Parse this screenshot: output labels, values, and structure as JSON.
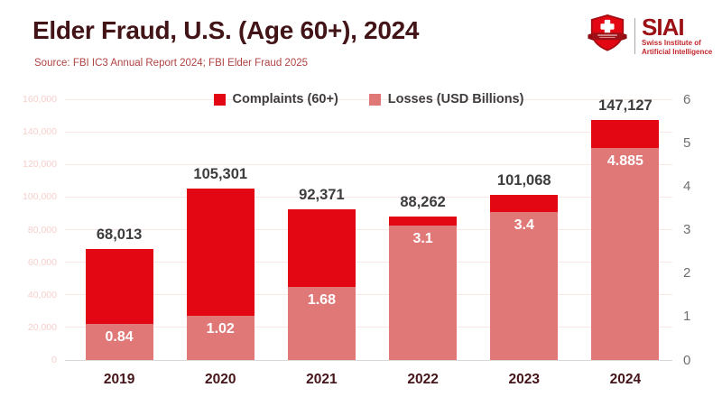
{
  "header": {
    "title": "Elder Fraud, U.S. (Age 60+), 2024",
    "source": "Source: FBI IC3 Annual Report 2024; FBI Elder Fraud 2025"
  },
  "logo": {
    "shield_icon": "swiss-shield-icon",
    "acronym": "SIAI",
    "name_line1": "Swiss Institute of",
    "name_line2": "Artificial Intelligence"
  },
  "colors": {
    "complaints": "#e30613",
    "losses": "#e07878",
    "title_maroon": "#421418",
    "source_red": "#b04343",
    "grid": "#fbe7e3",
    "baseline": "#d8d8d8",
    "axis_left_labels": "#f6cfcb",
    "axis_right_labels": "#6f6f6f",
    "value_label_gray": "#3d3d3d",
    "value_label_white": "#ffffff",
    "year_label_maroon": "#45151a",
    "siai_red": "#9c1116",
    "siai_sub_red": "#c1272d"
  },
  "chart_data": {
    "type": "bar",
    "title": "Elder Fraud, U.S. (Age 60+), 2024",
    "categories": [
      "2019",
      "2020",
      "2021",
      "2022",
      "2023",
      "2024"
    ],
    "series": [
      {
        "name": "Complaints (60+)",
        "axis": "left",
        "color": "#e30613",
        "values": [
          68013,
          105301,
          92371,
          88262,
          101068,
          147127
        ],
        "labels": [
          "68,013",
          "105,301",
          "92,371",
          "88,262",
          "101,068",
          "147,127"
        ]
      },
      {
        "name": "Losses (USD Billions)",
        "axis": "right",
        "color": "#e07878",
        "values": [
          0.84,
          1.02,
          1.68,
          3.1,
          3.4,
          4.885
        ],
        "labels": [
          "0.84",
          "1.02",
          "1.68",
          "3.1",
          "3.4",
          "4.885"
        ]
      }
    ],
    "left_axis": {
      "min": 0,
      "max": 160000,
      "step": 20000,
      "tick_labels": [
        "0",
        "20,000",
        "40,000",
        "60,000",
        "80,000",
        "100,000",
        "120,000",
        "140,000",
        "160,000"
      ]
    },
    "right_axis": {
      "min": 0,
      "max": 6,
      "step": 1,
      "tick_labels": [
        "0",
        "1",
        "2",
        "3",
        "4",
        "5",
        "6"
      ]
    },
    "legend_position": "top-center",
    "grid": true,
    "bar_style": "overlapped dual-axis columns, losses drawn in front of complaints"
  }
}
